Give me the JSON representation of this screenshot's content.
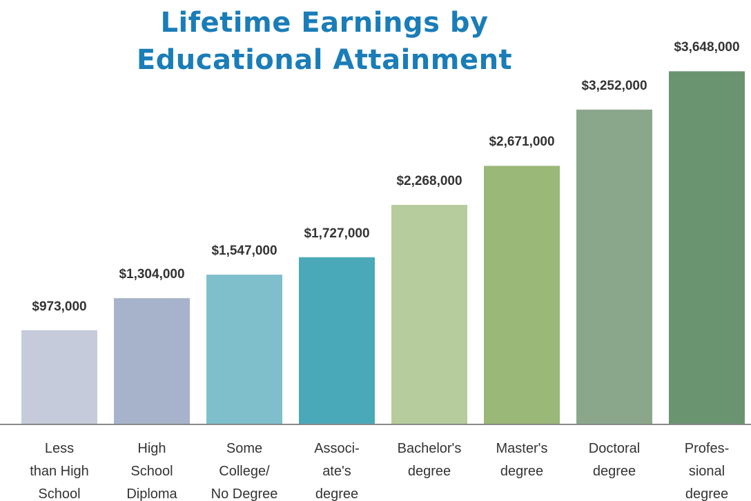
{
  "chart_data": {
    "type": "bar",
    "title": "Lifetime Earnings by\nEducational Attainment",
    "categories": [
      "Less\nthan High\nSchool",
      "High\nSchool\nDiploma",
      "Some\nCollege/\nNo Degree",
      "Associ-\nate's\ndegree",
      "Bachelor's\ndegree",
      "Master's\ndegree",
      "Doctoral\ndegree",
      "Profes-\nsional\ndegree"
    ],
    "values": [
      973000,
      1304000,
      1547000,
      1727000,
      2268000,
      2671000,
      3252000,
      3648000
    ],
    "value_labels": [
      "$973,000",
      "$1,304,000",
      "$1,547,000",
      "$1,727,000",
      "$2,268,000",
      "$2,671,000",
      "$3,252,000",
      "$3,648,000"
    ],
    "colors": [
      "#c5cbdb",
      "#a6b3ca",
      "#7fbfcc",
      "#4aa9b9",
      "#b6cc9c",
      "#9ab878",
      "#8aa78b",
      "#6a9470"
    ],
    "ylim": [
      0,
      3700000
    ]
  }
}
